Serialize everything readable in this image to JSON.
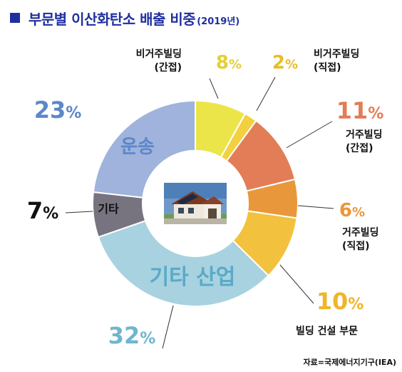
{
  "title": {
    "main": "부문별 이산화탄소 배출 비중",
    "year": "(2019년)"
  },
  "source": "자료=국제에너지기구(IEA)",
  "chart_data": {
    "type": "pie",
    "donut": true,
    "unit": "%",
    "slices": [
      {
        "label_lines": [
          "비거주빌딩",
          "(간접)"
        ],
        "value": 8,
        "value_text": "8%",
        "color": "#ece54a",
        "text_color": "#e4cf36"
      },
      {
        "label_lines": [
          "비거주빌딩",
          "(직접)"
        ],
        "value": 2,
        "value_text": "2%",
        "color": "#f2d040",
        "text_color": "#e7bd2a"
      },
      {
        "label_lines": [
          "거주빌딩",
          "(간접)"
        ],
        "value": 11,
        "value_text": "11%",
        "color": "#e27d57",
        "text_color": "#e27d57"
      },
      {
        "label_lines": [
          "거주빌딩",
          "(직접)"
        ],
        "value": 6,
        "value_text": "6%",
        "color": "#e8983a",
        "text_color": "#e8983a"
      },
      {
        "label_lines": [
          "빌딩 건설 부문"
        ],
        "value": 10,
        "value_text": "10%",
        "color": "#f2c13e",
        "text_color": "#efb52b"
      },
      {
        "label_lines": [
          "기타 산업"
        ],
        "value": 32,
        "value_text": "32%",
        "color": "#a8d2e0",
        "text_color": "#6fb6cf",
        "inner": true,
        "inner_color": "#5aaac6"
      },
      {
        "label_lines": [
          "기타"
        ],
        "value": 7,
        "value_text": "7%",
        "color": "#77737f",
        "text_color": "#111111",
        "inner": true,
        "inner_color": "#111111"
      },
      {
        "label_lines": [
          "운송"
        ],
        "value": 23,
        "value_text": "23%",
        "color": "#9fb3dc",
        "text_color": "#5c87c9",
        "inner": true,
        "inner_color": "#5c87c9"
      }
    ]
  }
}
